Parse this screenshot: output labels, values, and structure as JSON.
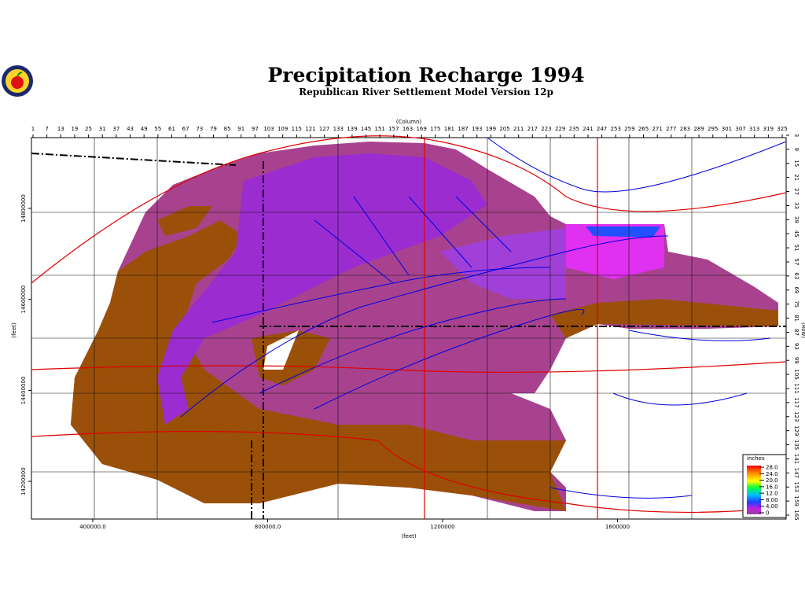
{
  "header": {
    "title": "Precipitation Recharge 1994",
    "subtitle": "Republican River Settlement Model Version 12p"
  },
  "axes": {
    "column_label": "(Column)",
    "row_label": "(Row)",
    "x_feet_label": "(feet)",
    "y_feet_label": "(feet)",
    "columns": [
      1,
      7,
      13,
      19,
      25,
      31,
      37,
      43,
      49,
      55,
      61,
      67,
      73,
      79,
      85,
      91,
      97,
      103,
      109,
      115,
      121,
      127,
      133,
      139,
      145,
      151,
      157,
      163,
      169,
      175,
      181,
      187,
      193,
      199,
      205,
      211,
      217,
      223,
      229,
      235,
      241,
      247,
      253,
      259,
      265,
      271,
      277,
      283,
      289,
      295,
      301,
      307,
      313,
      319,
      325
    ],
    "rows": [
      3,
      9,
      15,
      21,
      27,
      33,
      39,
      45,
      51,
      57,
      63,
      69,
      75,
      81,
      87,
      93,
      99,
      105,
      111,
      117,
      123,
      129,
      135,
      141,
      147,
      153,
      159,
      165
    ],
    "x_feet": [
      {
        "value": 400000,
        "label": "400000.0"
      },
      {
        "value": 800000,
        "label": "800000.0"
      },
      1200000,
      1600000
    ],
    "y_feet": [
      14800000,
      14600000,
      14400000,
      14200000
    ]
  },
  "legend": {
    "title": "inches",
    "entries": [
      {
        "value": 28,
        "label": "28.0"
      },
      {
        "value": 24,
        "label": "24.0"
      },
      {
        "value": 20,
        "label": "20.0"
      },
      {
        "value": 16,
        "label": "16.0"
      },
      {
        "value": 12,
        "label": "12.0"
      },
      {
        "value": 8,
        "label": "8.00"
      },
      {
        "value": 4,
        "label": "4.00"
      },
      0
    ]
  }
}
